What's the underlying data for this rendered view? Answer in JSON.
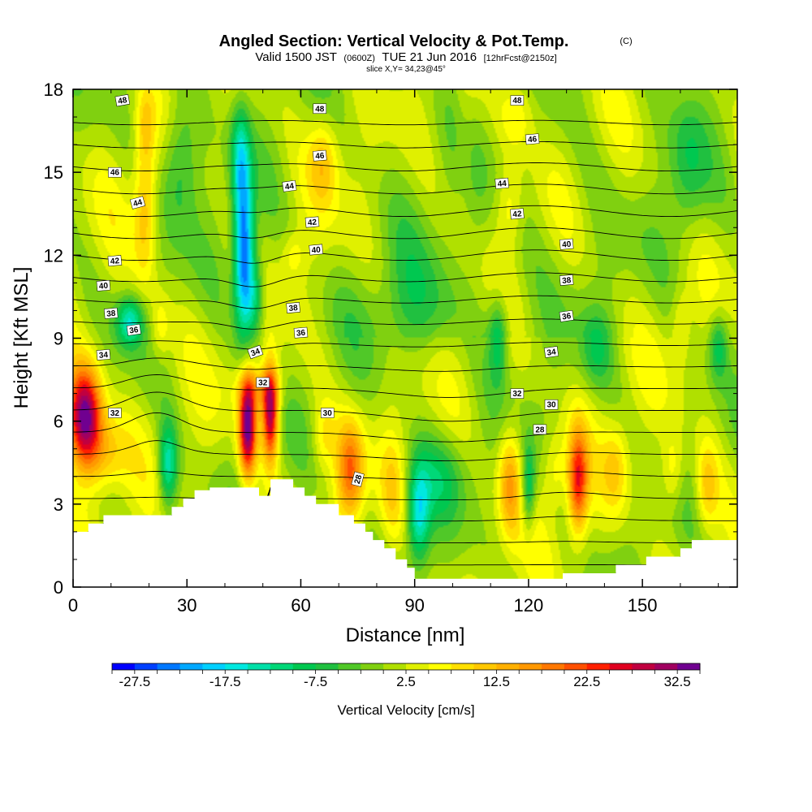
{
  "header": {
    "title": "Angled Section: Vertical Velocity & Pot.Temp.",
    "title_tag": "(C)",
    "valid_prefix": "Valid 1500 JST",
    "valid_zulu": "(0600Z)",
    "valid_date": "TUE 21 Jun 2016",
    "forecast_tag": "[12hrFcst@2150z]",
    "slice": "slice X,Y= 34,23@45°"
  },
  "chart_data": {
    "type": "heatmap",
    "xlabel": "Distance [nm]",
    "ylabel": "Height [Kft MSL]",
    "xlim": [
      0,
      175
    ],
    "ylim": [
      0,
      18
    ],
    "x_ticks": [
      0,
      30,
      60,
      90,
      120,
      150
    ],
    "y_ticks": [
      0,
      3,
      6,
      9,
      12,
      15,
      18
    ],
    "x_tick_labels": [
      "0",
      "30",
      "60",
      "90",
      "120",
      "150"
    ],
    "y_tick_labels": [
      "0",
      "3",
      "6",
      "9",
      "12",
      "15",
      "18"
    ],
    "colorbar": {
      "title": "Vertical Velocity [cm/s]",
      "min": -30,
      "max": 35,
      "step": 2.5,
      "tick_values": [
        -27.5,
        -17.5,
        -7.5,
        2.5,
        12.5,
        22.5,
        32.5
      ],
      "tick_labels": [
        "-27.5",
        "-17.5",
        "-7.5",
        "2.5",
        "12.5",
        "22.5",
        "32.5"
      ],
      "colors": [
        "#0000ff",
        "#0040ff",
        "#0078ff",
        "#00a8ff",
        "#00d0ff",
        "#00e8e0",
        "#00e0a8",
        "#00d878",
        "#00c850",
        "#20c040",
        "#50c828",
        "#80d010",
        "#b0e000",
        "#e0f000",
        "#ffff00",
        "#ffe000",
        "#ffc800",
        "#ffb000",
        "#ff9800",
        "#ff7800",
        "#ff5000",
        "#ff2000",
        "#e00020",
        "#c00040",
        "#a00060",
        "#700090"
      ]
    },
    "terrain_top_kft": [
      [
        0,
        2.0
      ],
      [
        4,
        2.0
      ],
      [
        4,
        2.3
      ],
      [
        8,
        2.3
      ],
      [
        8,
        2.6
      ],
      [
        12,
        2.6
      ],
      [
        26,
        2.6
      ],
      [
        26,
        2.9
      ],
      [
        29,
        2.9
      ],
      [
        29,
        3.2
      ],
      [
        32,
        3.2
      ],
      [
        32,
        3.5
      ],
      [
        36,
        3.5
      ],
      [
        36,
        3.6
      ],
      [
        49,
        3.6
      ],
      [
        49,
        3.3
      ],
      [
        52,
        3.3
      ],
      [
        52,
        3.9
      ],
      [
        58,
        3.9
      ],
      [
        58,
        3.6
      ],
      [
        61,
        3.6
      ],
      [
        61,
        3.3
      ],
      [
        64,
        3.3
      ],
      [
        64,
        3.0
      ],
      [
        70,
        3.0
      ],
      [
        70,
        2.6
      ],
      [
        74,
        2.6
      ],
      [
        74,
        2.3
      ],
      [
        77,
        2.3
      ],
      [
        77,
        2.0
      ],
      [
        79,
        2.0
      ],
      [
        79,
        1.7
      ],
      [
        82,
        1.7
      ],
      [
        82,
        1.4
      ],
      [
        85,
        1.4
      ],
      [
        85,
        1.0
      ],
      [
        88,
        1.0
      ],
      [
        88,
        0.7
      ],
      [
        90,
        0.7
      ],
      [
        90,
        0.3
      ],
      [
        129,
        0.3
      ],
      [
        129,
        0.5
      ],
      [
        143,
        0.5
      ],
      [
        143,
        0.8
      ],
      [
        151,
        0.8
      ],
      [
        151,
        1.1
      ],
      [
        160,
        1.1
      ],
      [
        160,
        1.4
      ],
      [
        163,
        1.4
      ],
      [
        163,
        1.7
      ],
      [
        175,
        1.7
      ]
    ],
    "features": [
      {
        "kind": "up",
        "x": 3,
        "z": 6.2,
        "wx": 4.5,
        "wz": 1.8,
        "amp": 34
      },
      {
        "kind": "up",
        "x": 8,
        "z": 4.8,
        "wx": 6,
        "wz": 1.4,
        "amp": 10
      },
      {
        "kind": "up",
        "x": 19,
        "z": 13.8,
        "wx": 3,
        "wz": 2.8,
        "amp": 11
      },
      {
        "kind": "up",
        "x": 19,
        "z": 16.8,
        "wx": 2.5,
        "wz": 1.3,
        "amp": 6
      },
      {
        "kind": "down",
        "x": 15,
        "z": 9.6,
        "wx": 3.5,
        "wz": 0.9,
        "amp": -15
      },
      {
        "kind": "up",
        "x": 23,
        "z": 9.4,
        "wx": 2.5,
        "wz": 1.2,
        "amp": 6
      },
      {
        "kind": "down",
        "x": 25,
        "z": 4.4,
        "wx": 2.5,
        "wz": 1.5,
        "amp": -16
      },
      {
        "kind": "down",
        "x": 28,
        "z": 15.5,
        "wx": 5,
        "wz": 2.5,
        "amp": -10
      },
      {
        "kind": "down",
        "x": 45,
        "z": 12.0,
        "wx": 2.6,
        "wz": 2.8,
        "amp": -28
      },
      {
        "kind": "down",
        "x": 48,
        "z": 10.5,
        "wx": 2.5,
        "wz": 1.6,
        "amp": -12
      },
      {
        "kind": "down",
        "x": 44,
        "z": 15.5,
        "wx": 2.5,
        "wz": 2.0,
        "amp": -13
      },
      {
        "kind": "up",
        "x": 46,
        "z": 5.8,
        "wx": 2.3,
        "wz": 1.8,
        "amp": 33
      },
      {
        "kind": "up",
        "x": 52,
        "z": 6.3,
        "wx": 2.1,
        "wz": 1.7,
        "amp": 30
      },
      {
        "kind": "up",
        "x": 49,
        "z": 7.2,
        "wx": 6,
        "wz": 0.8,
        "amp": 8
      },
      {
        "kind": "up",
        "x": 66,
        "z": 15.5,
        "wx": 4,
        "wz": 1.7,
        "amp": 10
      },
      {
        "kind": "up",
        "x": 58,
        "z": 12.0,
        "wx": 3,
        "wz": 0.8,
        "amp": 5
      },
      {
        "kind": "up",
        "x": 73,
        "z": 4.2,
        "wx": 3.5,
        "wz": 1.8,
        "amp": 17
      },
      {
        "kind": "up",
        "x": 66,
        "z": 5.4,
        "wx": 3,
        "wz": 1.2,
        "amp": 6
      },
      {
        "kind": "down",
        "x": 91,
        "z": 2.6,
        "wx": 3,
        "wz": 1.8,
        "amp": -17
      },
      {
        "kind": "down",
        "x": 97,
        "z": 4.0,
        "wx": 7,
        "wz": 1.6,
        "amp": -7
      },
      {
        "kind": "down",
        "x": 90,
        "z": 10.0,
        "wx": 12,
        "wz": 2.0,
        "amp": -6
      },
      {
        "kind": "up",
        "x": 84,
        "z": 3.5,
        "wx": 3,
        "wz": 2.0,
        "amp": 6
      },
      {
        "kind": "up",
        "x": 115,
        "z": 3.8,
        "wx": 3,
        "wz": 1.9,
        "amp": 14
      },
      {
        "kind": "down",
        "x": 112,
        "z": 9.0,
        "wx": 2.5,
        "wz": 1.5,
        "amp": -11
      },
      {
        "kind": "down",
        "x": 120,
        "z": 3.6,
        "wx": 1.8,
        "wz": 1.6,
        "amp": -12
      },
      {
        "kind": "up",
        "x": 117,
        "z": 17.2,
        "wx": 5,
        "wz": 1.6,
        "amp": 8
      },
      {
        "kind": "up",
        "x": 115,
        "z": 13.8,
        "wx": 3.5,
        "wz": 1.5,
        "amp": 6
      },
      {
        "kind": "up",
        "x": 133,
        "z": 3.8,
        "wx": 2.6,
        "wz": 1.9,
        "amp": 22
      },
      {
        "kind": "up",
        "x": 127,
        "z": 4.2,
        "wx": 3,
        "wz": 1.4,
        "amp": 6
      },
      {
        "kind": "up",
        "x": 143,
        "z": 4.3,
        "wx": 3.5,
        "wz": 1.6,
        "amp": 8
      },
      {
        "kind": "up",
        "x": 158,
        "z": 4.2,
        "wx": 3,
        "wz": 1.4,
        "amp": 7
      },
      {
        "kind": "up",
        "x": 167,
        "z": 3.6,
        "wx": 3,
        "wz": 1.6,
        "amp": 10
      },
      {
        "kind": "down",
        "x": 138,
        "z": 8.6,
        "wx": 4,
        "wz": 1.3,
        "amp": -7
      },
      {
        "kind": "down",
        "x": 170,
        "z": 8.7,
        "wx": 2.5,
        "wz": 1.2,
        "amp": -10
      },
      {
        "kind": "up",
        "x": 160,
        "z": 9.5,
        "wx": 2.5,
        "wz": 1.4,
        "amp": 5
      },
      {
        "kind": "down",
        "x": 162,
        "z": 15.0,
        "wx": 5,
        "wz": 3,
        "amp": -7
      },
      {
        "kind": "up",
        "x": 103,
        "z": 16.0,
        "wx": 3,
        "wz": 3,
        "amp": 4
      }
    ],
    "theta_contours": [
      28,
      29,
      30,
      31,
      32,
      33,
      34,
      35,
      36,
      37,
      38,
      39,
      40,
      41,
      42,
      43,
      44,
      45,
      46,
      47,
      48,
      49
    ],
    "theta_labels": [
      {
        "x": 11,
        "z": 6.3,
        "v": "32",
        "a": 0
      },
      {
        "x": 8,
        "z": 8.4,
        "v": "34",
        "a": -5
      },
      {
        "x": 16,
        "z": 9.3,
        "v": "36",
        "a": -8
      },
      {
        "x": 10,
        "z": 9.9,
        "v": "38",
        "a": -5
      },
      {
        "x": 8,
        "z": 10.9,
        "v": "40",
        "a": -5
      },
      {
        "x": 11,
        "z": 11.8,
        "v": "42",
        "a": -5
      },
      {
        "x": 17,
        "z": 13.9,
        "v": "44",
        "a": -15
      },
      {
        "x": 11,
        "z": 15.0,
        "v": "46",
        "a": 0
      },
      {
        "x": 13,
        "z": 17.6,
        "v": "48",
        "a": -10
      },
      {
        "x": 48,
        "z": 8.5,
        "v": "34",
        "a": -20
      },
      {
        "x": 50,
        "z": 7.4,
        "v": "32",
        "a": 0
      },
      {
        "x": 67,
        "z": 6.3,
        "v": "30",
        "a": 0
      },
      {
        "x": 75,
        "z": 3.9,
        "v": "28",
        "a": -75
      },
      {
        "x": 58,
        "z": 10.1,
        "v": "38",
        "a": -5
      },
      {
        "x": 60,
        "z": 9.2,
        "v": "36",
        "a": -5
      },
      {
        "x": 64,
        "z": 12.2,
        "v": "40",
        "a": -5
      },
      {
        "x": 63,
        "z": 13.2,
        "v": "42",
        "a": -5
      },
      {
        "x": 57,
        "z": 14.5,
        "v": "44",
        "a": -8
      },
      {
        "x": 65,
        "z": 15.6,
        "v": "46",
        "a": -5
      },
      {
        "x": 65,
        "z": 17.3,
        "v": "48",
        "a": 0
      },
      {
        "x": 117,
        "z": 7.0,
        "v": "32",
        "a": 0
      },
      {
        "x": 126,
        "z": 6.6,
        "v": "30",
        "a": 0
      },
      {
        "x": 123,
        "z": 5.7,
        "v": "28",
        "a": 0
      },
      {
        "x": 126,
        "z": 8.5,
        "v": "34",
        "a": -8
      },
      {
        "x": 130,
        "z": 9.8,
        "v": "36",
        "a": -8
      },
      {
        "x": 130,
        "z": 11.1,
        "v": "38",
        "a": -5
      },
      {
        "x": 130,
        "z": 12.4,
        "v": "40",
        "a": -5
      },
      {
        "x": 117,
        "z": 13.5,
        "v": "42",
        "a": -5
      },
      {
        "x": 113,
        "z": 14.6,
        "v": "44",
        "a": -5
      },
      {
        "x": 121,
        "z": 16.2,
        "v": "46",
        "a": -5
      },
      {
        "x": 117,
        "z": 17.6,
        "v": "48",
        "a": 0
      }
    ]
  }
}
